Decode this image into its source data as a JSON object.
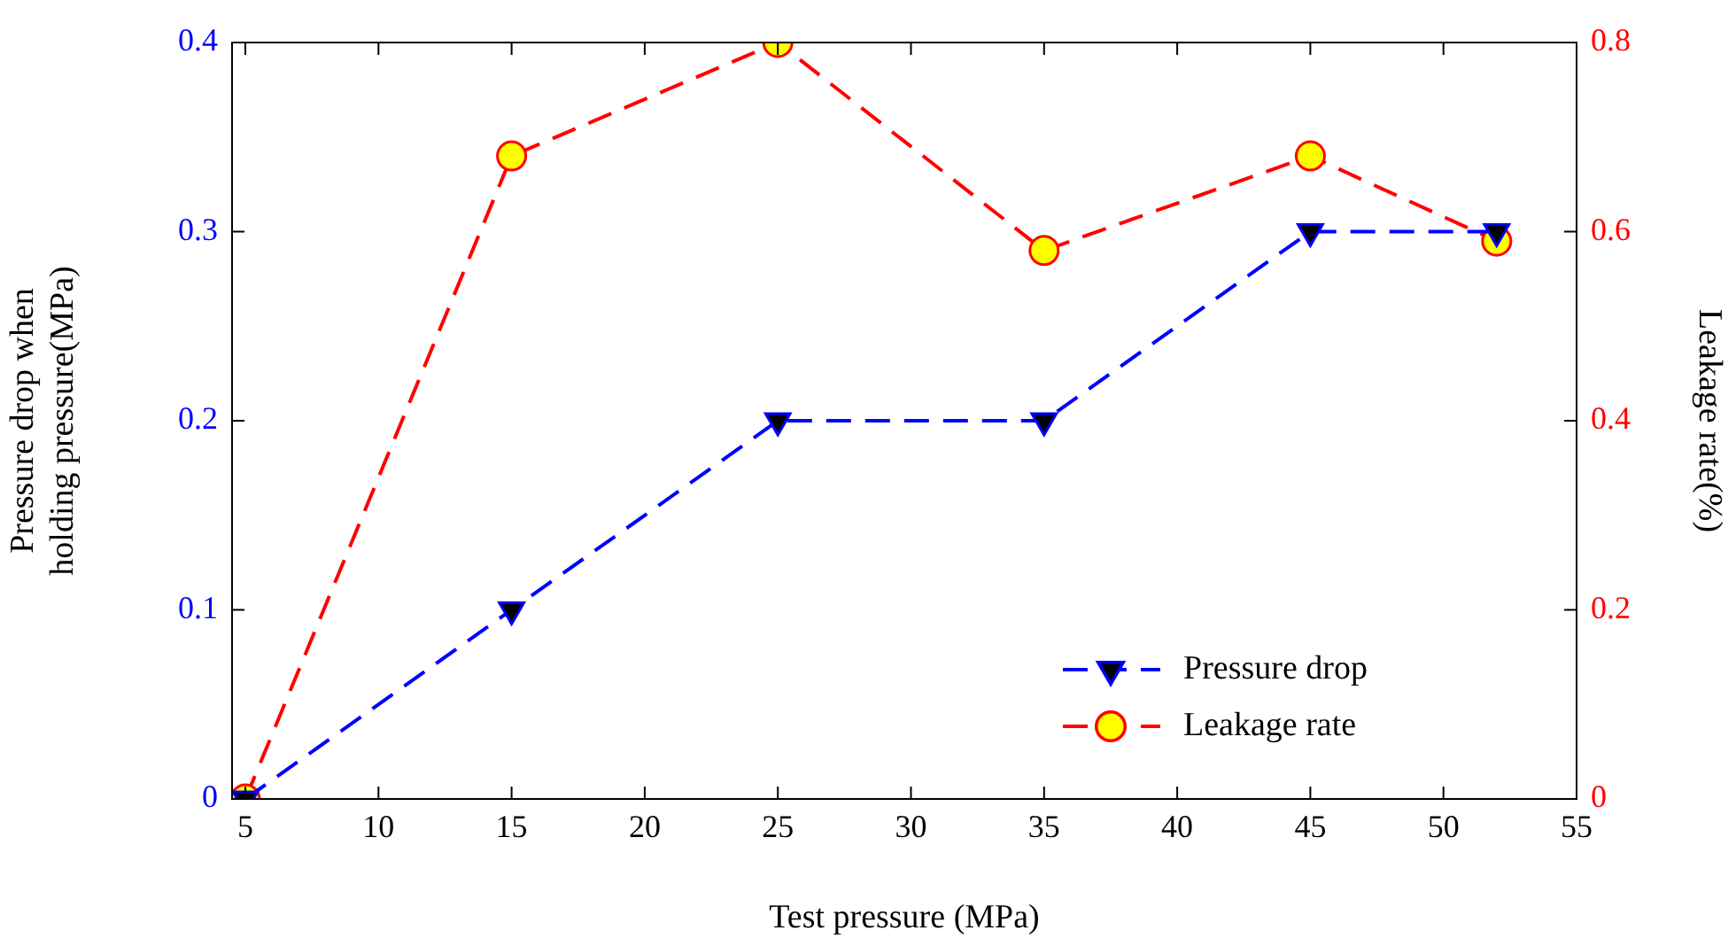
{
  "chart_data": {
    "type": "line",
    "xlabel": "Test pressure (MPa)",
    "ylabel": "Pressure drop when\nholding pressure(MPa)",
    "y2label": "Leakage rate(%)",
    "x": [
      5,
      15,
      25,
      35,
      45,
      52
    ],
    "series": [
      {
        "name": "Pressure drop",
        "color": "#0000ff",
        "values": [
          0,
          0.1,
          0.2,
          0.2,
          0.3,
          0.3
        ],
        "marker": "triangle",
        "line_style": "dashed"
      },
      {
        "name": "Leakage rate",
        "color": "#ff0000",
        "values": [
          0,
          0.68,
          0.8,
          0.58,
          0.68,
          0.59
        ],
        "marker": "circle",
        "line_style": "dashed",
        "axis": "y2"
      }
    ],
    "xlim": [
      4.5,
      55
    ],
    "xticks": [
      5,
      10,
      15,
      20,
      25,
      30,
      35,
      40,
      45,
      50,
      55
    ],
    "ylim": [
      0,
      0.4
    ],
    "yticks": [
      0,
      0.1,
      0.2,
      0.3,
      0.4
    ],
    "y2lim": [
      0,
      0.8
    ],
    "y2ticks": [
      0,
      0.2,
      0.4,
      0.6,
      0.8
    ],
    "grid": false,
    "legend": "bottom right"
  }
}
